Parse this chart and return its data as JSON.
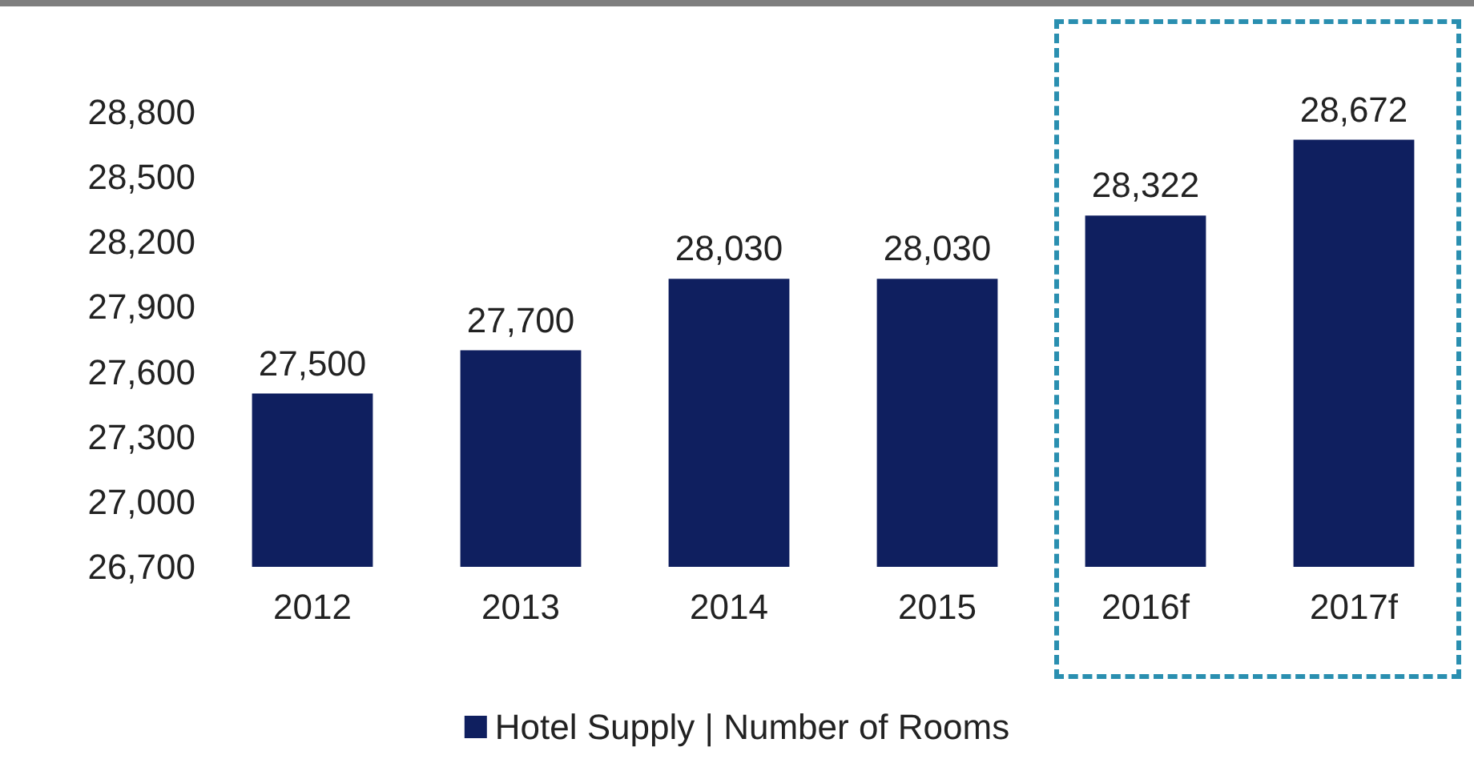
{
  "chart_data": {
    "type": "bar",
    "categories": [
      "2012",
      "2013",
      "2014",
      "2015",
      "2016f",
      "2017f"
    ],
    "series": [
      {
        "name": "Hotel Supply | Number of Rooms",
        "color": "#0f1f5f",
        "values": [
          27500,
          27700,
          28030,
          28030,
          28322,
          28672
        ],
        "value_labels": [
          "27,500",
          "27,700",
          "28,030",
          "28,030",
          "28,322",
          "28,672"
        ]
      }
    ],
    "ylim": [
      26700,
      28800
    ],
    "yticks": [
      {
        "value": 26700,
        "label": "26,700"
      },
      {
        "value": 27000,
        "label": "27,000"
      },
      {
        "value": 27300,
        "label": "27,300"
      },
      {
        "value": 27600,
        "label": "27,600"
      },
      {
        "value": 27900,
        "label": "27,900"
      },
      {
        "value": 28200,
        "label": "28,200"
      },
      {
        "value": 28500,
        "label": "28,500"
      },
      {
        "value": 28800,
        "label": "28,800"
      }
    ],
    "grid": false,
    "legend": "bottom"
  }
}
